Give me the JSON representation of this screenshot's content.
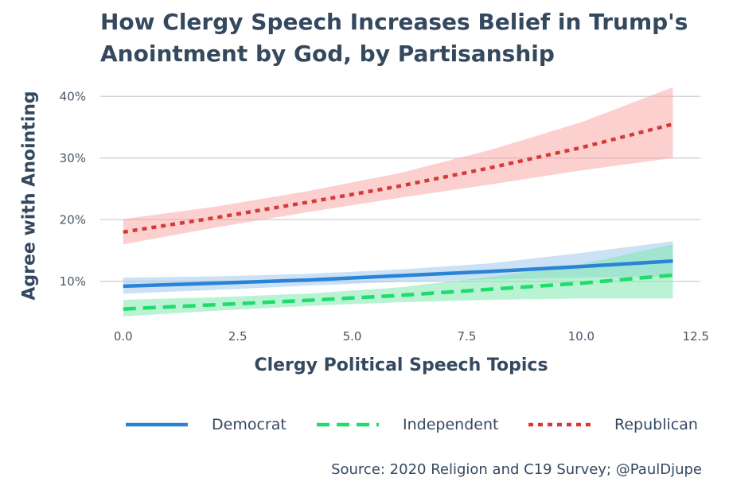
{
  "chart_data": {
    "type": "line",
    "title_line1": "How Clergy Speech Increases Belief in Trump's",
    "title_line2": "Anointment by God, by Partisanship",
    "xlabel": "Clergy Political Speech Topics",
    "ylabel": "Agree with Anointing",
    "xlim": [
      -0.5,
      12.6
    ],
    "ylim": [
      3,
      43
    ],
    "x_ticks": [
      0,
      2.5,
      5,
      7.5,
      10,
      12.5
    ],
    "x_tick_labels": [
      "0.0",
      "2.5",
      "5.0",
      "7.5",
      "10.0",
      "12.5"
    ],
    "y_ticks": [
      10,
      20,
      30,
      40
    ],
    "y_tick_labels": [
      "10%",
      "20%",
      "30%",
      "40%"
    ],
    "grid": "horizontal",
    "legend_position": "bottom",
    "source": "Source: 2020 Religion and C19 Survey; @PaulDjupe",
    "series": [
      {
        "name": "Democrat",
        "color": "#2b83d6",
        "ribbon_color": "#9fc9ef",
        "line_style": "solid",
        "x": [
          0,
          2,
          4,
          6,
          8,
          10,
          12
        ],
        "y": [
          9.2,
          9.7,
          10.2,
          10.9,
          11.6,
          12.4,
          13.3
        ],
        "lower": [
          8.0,
          8.6,
          9.3,
          9.9,
          10.3,
          10.6,
          10.8
        ],
        "upper": [
          10.6,
          10.8,
          11.2,
          11.9,
          12.9,
          14.6,
          16.5
        ]
      },
      {
        "name": "Independent",
        "color": "#1fdc6c",
        "ribbon_color": "#7fe9ae",
        "line_style": "dashed",
        "x": [
          0,
          2,
          4,
          6,
          8,
          10,
          12
        ],
        "y": [
          5.5,
          6.2,
          6.9,
          7.7,
          8.7,
          9.7,
          11.0
        ],
        "lower": [
          4.3,
          5.2,
          6.0,
          6.6,
          7.0,
          7.2,
          7.2
        ],
        "upper": [
          7.0,
          7.4,
          8.0,
          9.0,
          10.7,
          12.8,
          16.0
        ]
      },
      {
        "name": "Republican",
        "color": "#d63a36",
        "ribbon_color": "#f7aaa8",
        "line_style": "dotted",
        "x": [
          0,
          2,
          4,
          6,
          8,
          10,
          12
        ],
        "y": [
          18.0,
          20.3,
          22.8,
          25.4,
          28.4,
          31.7,
          35.5
        ],
        "lower": [
          16.0,
          18.7,
          21.2,
          23.5,
          25.7,
          28.0,
          30.0
        ],
        "upper": [
          20.1,
          22.1,
          24.6,
          27.5,
          31.3,
          35.8,
          41.5
        ]
      }
    ]
  }
}
